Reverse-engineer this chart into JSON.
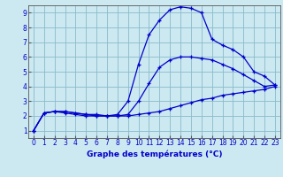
{
  "title": "Graphe des températures (°C)",
  "bg_color": "#cce8f0",
  "line_color": "#0000cc",
  "grid_color": "#88bbcc",
  "xlim": [
    -0.5,
    23.5
  ],
  "ylim": [
    0.5,
    9.5
  ],
  "xticks": [
    0,
    1,
    2,
    3,
    4,
    5,
    6,
    7,
    8,
    9,
    10,
    11,
    12,
    13,
    14,
    15,
    16,
    17,
    18,
    19,
    20,
    21,
    22,
    23
  ],
  "yticks": [
    1,
    2,
    3,
    4,
    5,
    6,
    7,
    8,
    9
  ],
  "series1_x": [
    0,
    1,
    2,
    3,
    4,
    5,
    6,
    7,
    8,
    9,
    10,
    11,
    12,
    13,
    14,
    15,
    16,
    17,
    18,
    19,
    20,
    21,
    22,
    23
  ],
  "series1_y": [
    1.0,
    2.2,
    2.3,
    2.2,
    2.1,
    2.0,
    2.0,
    2.0,
    2.0,
    2.0,
    2.1,
    2.2,
    2.3,
    2.5,
    2.7,
    2.9,
    3.1,
    3.2,
    3.4,
    3.5,
    3.6,
    3.7,
    3.8,
    4.0
  ],
  "series2_x": [
    0,
    1,
    2,
    3,
    4,
    5,
    6,
    7,
    8,
    9,
    10,
    11,
    12,
    13,
    14,
    15,
    16,
    17,
    18,
    19,
    20,
    21,
    22,
    23
  ],
  "series2_y": [
    1.0,
    2.2,
    2.3,
    2.3,
    2.2,
    2.1,
    2.0,
    2.0,
    2.1,
    3.0,
    5.5,
    7.5,
    8.5,
    9.2,
    9.4,
    9.3,
    9.0,
    7.2,
    6.8,
    6.5,
    6.0,
    5.0,
    4.7,
    4.1
  ],
  "series3_x": [
    0,
    1,
    2,
    3,
    4,
    5,
    6,
    7,
    8,
    9,
    10,
    11,
    12,
    13,
    14,
    15,
    16,
    17,
    18,
    19,
    20,
    21,
    22,
    23
  ],
  "series3_y": [
    1.0,
    2.2,
    2.3,
    2.3,
    2.2,
    2.1,
    2.1,
    2.0,
    2.0,
    2.1,
    3.0,
    4.2,
    5.3,
    5.8,
    6.0,
    6.0,
    5.9,
    5.8,
    5.5,
    5.2,
    4.8,
    4.4,
    4.0,
    4.1
  ]
}
